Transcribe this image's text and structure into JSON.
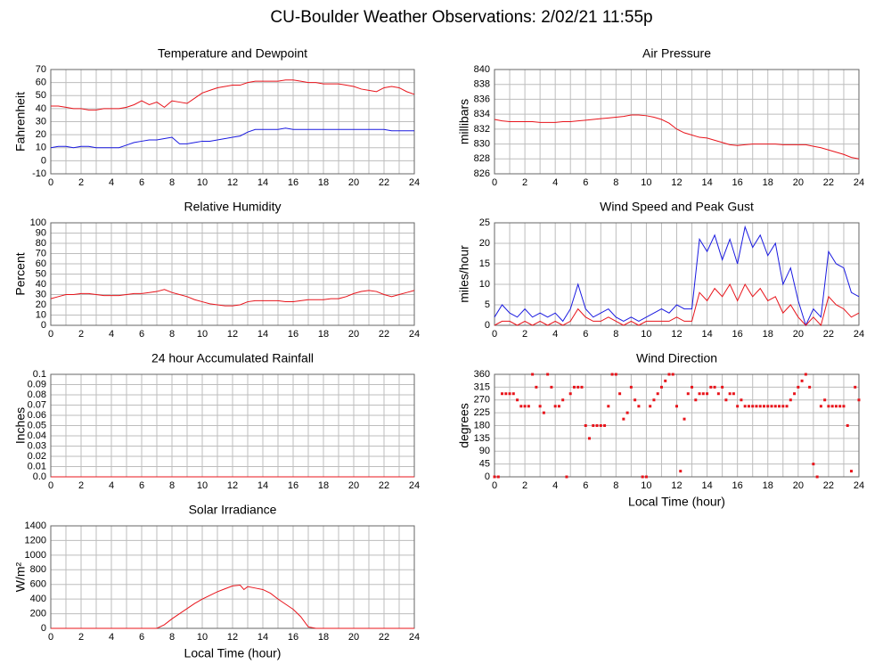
{
  "title": "CU-Boulder Weather Observations: 2/02/21 11:55p",
  "chart_data": [
    {
      "type": "line",
      "title": "Temperature and Dewpoint",
      "ylabel": "Fahrenheit",
      "x": [
        0,
        0.5,
        1,
        1.5,
        2,
        2.5,
        3,
        3.5,
        4,
        4.5,
        5,
        5.5,
        6,
        6.5,
        7,
        7.5,
        8,
        8.5,
        9,
        9.5,
        10,
        10.5,
        11,
        11.5,
        12,
        12.5,
        13,
        13.5,
        14,
        14.5,
        15,
        15.5,
        16,
        16.5,
        17,
        17.5,
        18,
        18.5,
        19,
        19.5,
        20,
        20.5,
        21,
        21.5,
        22,
        22.5,
        23,
        23.5,
        24
      ],
      "series": [
        {
          "color": "#e8141b",
          "values": [
            42,
            42,
            41,
            40,
            40,
            39,
            39,
            40,
            40,
            40,
            41,
            43,
            46,
            43,
            45,
            41,
            46,
            45,
            44,
            48,
            52,
            54,
            56,
            57,
            58,
            58,
            60,
            61,
            61,
            61,
            61,
            62,
            62,
            61,
            60,
            60,
            59,
            59,
            59,
            58,
            57,
            55,
            54,
            53,
            56,
            57,
            56,
            53,
            51
          ]
        },
        {
          "color": "#1a1ae0",
          "values": [
            10,
            11,
            11,
            10,
            11,
            11,
            10,
            10,
            10,
            10,
            12,
            14,
            15,
            16,
            16,
            17,
            18,
            13,
            13,
            14,
            15,
            15,
            16,
            17,
            18,
            19,
            22,
            24,
            24,
            24,
            24,
            25,
            24,
            24,
            24,
            24,
            24,
            24,
            24,
            24,
            24,
            24,
            24,
            24,
            24,
            23,
            23,
            23,
            23
          ]
        }
      ],
      "xlim": [
        0,
        24
      ],
      "xticks": [
        0,
        2,
        4,
        6,
        8,
        10,
        12,
        14,
        16,
        18,
        20,
        22,
        24
      ],
      "xminor": [
        1,
        3,
        5,
        7,
        9,
        11,
        13,
        15,
        17,
        19,
        21,
        23
      ],
      "ylim": [
        -10,
        70
      ],
      "yticks": [
        -10,
        0,
        10,
        20,
        30,
        40,
        50,
        60,
        70
      ],
      "grid": true
    },
    {
      "type": "line",
      "title": "Air Pressure",
      "ylabel": "millibars",
      "x": [
        0,
        0.5,
        1,
        1.5,
        2,
        2.5,
        3,
        3.5,
        4,
        4.5,
        5,
        5.5,
        6,
        6.5,
        7,
        7.5,
        8,
        8.5,
        9,
        9.5,
        10,
        10.5,
        11,
        11.5,
        12,
        12.5,
        13,
        13.5,
        14,
        14.5,
        15,
        15.5,
        16,
        16.5,
        17,
        17.5,
        18,
        18.5,
        19,
        19.5,
        20,
        20.5,
        21,
        21.5,
        22,
        22.5,
        23,
        23.5,
        24
      ],
      "series": [
        {
          "color": "#e8141b",
          "values": [
            833.3,
            833.1,
            833.0,
            833.0,
            833.0,
            833.0,
            832.9,
            832.9,
            832.9,
            833.0,
            833.0,
            833.1,
            833.2,
            833.3,
            833.4,
            833.5,
            833.6,
            833.7,
            833.9,
            833.9,
            833.8,
            833.6,
            833.3,
            832.8,
            832.0,
            831.5,
            831.2,
            830.9,
            830.8,
            830.5,
            830.2,
            829.9,
            829.8,
            829.9,
            830.0,
            830.0,
            830.0,
            830.0,
            829.9,
            829.9,
            829.9,
            829.9,
            829.7,
            829.5,
            829.2,
            828.9,
            828.6,
            828.2,
            828.0
          ]
        }
      ],
      "xlim": [
        0,
        24
      ],
      "xticks": [
        0,
        2,
        4,
        6,
        8,
        10,
        12,
        14,
        16,
        18,
        20,
        22,
        24
      ],
      "xminor": [
        1,
        3,
        5,
        7,
        9,
        11,
        13,
        15,
        17,
        19,
        21,
        23
      ],
      "ylim": [
        826,
        840
      ],
      "yticks": [
        826,
        828,
        830,
        832,
        834,
        836,
        838,
        840
      ],
      "grid": true
    },
    {
      "type": "line",
      "title": "Relative Humidity",
      "ylabel": "Percent",
      "x": [
        0,
        0.5,
        1,
        1.5,
        2,
        2.5,
        3,
        3.5,
        4,
        4.5,
        5,
        5.5,
        6,
        6.5,
        7,
        7.5,
        8,
        8.5,
        9,
        9.5,
        10,
        10.5,
        11,
        11.5,
        12,
        12.5,
        13,
        13.5,
        14,
        14.5,
        15,
        15.5,
        16,
        16.5,
        17,
        17.5,
        18,
        18.5,
        19,
        19.5,
        20,
        20.5,
        21,
        21.5,
        22,
        22.5,
        23,
        23.5,
        24
      ],
      "series": [
        {
          "color": "#e8141b",
          "values": [
            26,
            28,
            30,
            30,
            31,
            31,
            30,
            29,
            29,
            29,
            30,
            31,
            31,
            32,
            33,
            35,
            32,
            30,
            28,
            25,
            23,
            21,
            20,
            19,
            19,
            20,
            23,
            24,
            24,
            24,
            24,
            23,
            23,
            24,
            25,
            25,
            25,
            26,
            26,
            28,
            31,
            33,
            34,
            33,
            30,
            28,
            30,
            32,
            34
          ]
        }
      ],
      "xlim": [
        0,
        24
      ],
      "xticks": [
        0,
        2,
        4,
        6,
        8,
        10,
        12,
        14,
        16,
        18,
        20,
        22,
        24
      ],
      "xminor": [
        1,
        3,
        5,
        7,
        9,
        11,
        13,
        15,
        17,
        19,
        21,
        23
      ],
      "ylim": [
        0,
        100
      ],
      "yticks": [
        0,
        10,
        20,
        30,
        40,
        50,
        60,
        70,
        80,
        90,
        100
      ],
      "grid": true
    },
    {
      "type": "line",
      "title": "Wind Speed and Peak Gust",
      "ylabel": "miles/hour",
      "x": [
        0,
        0.5,
        1,
        1.5,
        2,
        2.5,
        3,
        3.5,
        4,
        4.5,
        5,
        5.5,
        6,
        6.5,
        7,
        7.5,
        8,
        8.5,
        9,
        9.5,
        10,
        10.5,
        11,
        11.5,
        12,
        12.5,
        13,
        13.5,
        14,
        14.5,
        15,
        15.5,
        16,
        16.5,
        17,
        17.5,
        18,
        18.5,
        19,
        19.5,
        20,
        20.5,
        21,
        21.5,
        22,
        22.5,
        23,
        23.5,
        24
      ],
      "series": [
        {
          "color": "#1a1ae0",
          "values": [
            2,
            5,
            3,
            2,
            4,
            2,
            3,
            2,
            3,
            1,
            4,
            10,
            4,
            2,
            3,
            4,
            2,
            1,
            2,
            1,
            2,
            3,
            4,
            3,
            5,
            4,
            4,
            21,
            18,
            22,
            16,
            21,
            15,
            24,
            19,
            22,
            17,
            20,
            10,
            14,
            6,
            0,
            4,
            2,
            18,
            15,
            14,
            8,
            7
          ]
        },
        {
          "color": "#e8141b",
          "values": [
            0,
            1,
            1,
            0,
            1,
            0,
            1,
            0,
            1,
            0,
            1,
            4,
            2,
            1,
            1,
            2,
            1,
            0,
            1,
            0,
            1,
            1,
            1,
            1,
            2,
            1,
            1,
            8,
            6,
            9,
            7,
            10,
            6,
            10,
            7,
            9,
            6,
            7,
            3,
            5,
            2,
            0,
            2,
            0,
            7,
            5,
            4,
            2,
            3
          ]
        }
      ],
      "xlim": [
        0,
        24
      ],
      "xticks": [
        0,
        2,
        4,
        6,
        8,
        10,
        12,
        14,
        16,
        18,
        20,
        22,
        24
      ],
      "xminor": [
        1,
        3,
        5,
        7,
        9,
        11,
        13,
        15,
        17,
        19,
        21,
        23
      ],
      "ylim": [
        0,
        25
      ],
      "yticks": [
        0,
        5,
        10,
        15,
        20,
        25
      ],
      "grid": true
    },
    {
      "type": "line",
      "title": "24 hour Accumulated Rainfall",
      "ylabel": "Inches",
      "x": [
        0,
        24
      ],
      "series": [
        {
          "color": "#e8141b",
          "values": [
            0,
            0
          ]
        }
      ],
      "xlim": [
        0,
        24
      ],
      "xticks": [
        0,
        2,
        4,
        6,
        8,
        10,
        12,
        14,
        16,
        18,
        20,
        22,
        24
      ],
      "xminor": [
        1,
        3,
        5,
        7,
        9,
        11,
        13,
        15,
        17,
        19,
        21,
        23
      ],
      "ylim": [
        0,
        0.1
      ],
      "yticks": [
        {
          "value": 0,
          "label": "0.0"
        },
        0.01,
        0.02,
        0.03,
        0.04,
        0.05,
        0.06,
        0.07,
        0.08,
        0.09,
        0.1
      ],
      "grid": true
    },
    {
      "type": "scatter",
      "title": "Wind Direction",
      "ylabel": "degrees",
      "xlabel": "Local Time (hour)",
      "x": [
        0,
        0.25,
        0.5,
        0.75,
        1,
        1.25,
        1.5,
        1.75,
        2,
        2.25,
        2.5,
        2.75,
        3,
        3.25,
        3.5,
        3.75,
        4,
        4.25,
        4.5,
        4.75,
        5,
        5.25,
        5.5,
        5.75,
        6,
        6.25,
        6.5,
        6.75,
        7,
        7.25,
        7.5,
        7.75,
        8,
        8.25,
        8.5,
        8.75,
        9,
        9.25,
        9.5,
        9.75,
        10,
        10.25,
        10.5,
        10.75,
        11,
        11.25,
        11.5,
        11.75,
        12,
        12.25,
        12.5,
        12.75,
        13,
        13.25,
        13.5,
        13.75,
        14,
        14.25,
        14.5,
        14.75,
        15,
        15.25,
        15.5,
        15.75,
        16,
        16.25,
        16.5,
        16.75,
        17,
        17.25,
        17.5,
        17.75,
        18,
        18.25,
        18.5,
        18.75,
        19,
        19.25,
        19.5,
        19.75,
        20,
        20.25,
        20.5,
        20.75,
        21,
        21.25,
        21.5,
        21.75,
        22,
        22.25,
        22.5,
        22.75,
        23,
        23.25,
        23.5,
        23.75,
        24
      ],
      "series": [
        {
          "color": "#e8141b",
          "values": [
            0,
            0,
            292,
            292,
            292,
            292,
            270,
            248,
            248,
            248,
            360,
            315,
            248,
            225,
            360,
            315,
            248,
            248,
            270,
            0,
            292,
            315,
            315,
            315,
            180,
            135,
            180,
            180,
            180,
            180,
            248,
            360,
            360,
            292,
            203,
            225,
            315,
            270,
            248,
            0,
            0,
            248,
            270,
            292,
            315,
            337,
            360,
            360,
            248,
            20,
            203,
            292,
            315,
            270,
            292,
            292,
            292,
            315,
            315,
            292,
            315,
            270,
            292,
            292,
            248,
            270,
            248,
            248,
            248,
            248,
            248,
            248,
            248,
            248,
            248,
            248,
            248,
            248,
            270,
            292,
            315,
            337,
            360,
            315,
            45,
            0,
            248,
            270,
            248,
            248,
            248,
            248,
            248,
            180,
            20,
            315,
            270
          ]
        }
      ],
      "xlim": [
        0,
        24
      ],
      "xticks": [
        0,
        2,
        4,
        6,
        8,
        10,
        12,
        14,
        16,
        18,
        20,
        22,
        24
      ],
      "xminor": [
        1,
        3,
        5,
        7,
        9,
        11,
        13,
        15,
        17,
        19,
        21,
        23
      ],
      "ylim": [
        0,
        360
      ],
      "yticks": [
        0,
        45,
        90,
        135,
        180,
        225,
        270,
        315,
        360
      ],
      "grid": true
    },
    {
      "type": "line",
      "title": "Solar Irradiance",
      "ylabel": "W/m²",
      "xlabel": "Local Time (hour)",
      "x": [
        0,
        7,
        7.5,
        8,
        8.5,
        9,
        9.5,
        10,
        10.5,
        11,
        11.5,
        12,
        12.5,
        12.75,
        13,
        13.5,
        14,
        14.5,
        15,
        15.5,
        16,
        16.5,
        17,
        17.5,
        24
      ],
      "series": [
        {
          "color": "#e8141b",
          "values": [
            0,
            0,
            50,
            130,
            200,
            270,
            340,
            400,
            450,
            500,
            540,
            580,
            590,
            530,
            570,
            550,
            530,
            480,
            400,
            330,
            260,
            160,
            20,
            0,
            0
          ]
        }
      ],
      "xlim": [
        0,
        24
      ],
      "xticks": [
        0,
        2,
        4,
        6,
        8,
        10,
        12,
        14,
        16,
        18,
        20,
        22,
        24
      ],
      "xminor": [
        1,
        3,
        5,
        7,
        9,
        11,
        13,
        15,
        17,
        19,
        21,
        23
      ],
      "ylim": [
        0,
        1400
      ],
      "yticks": [
        0,
        200,
        400,
        600,
        800,
        1000,
        1200,
        1400
      ],
      "grid": true
    }
  ]
}
